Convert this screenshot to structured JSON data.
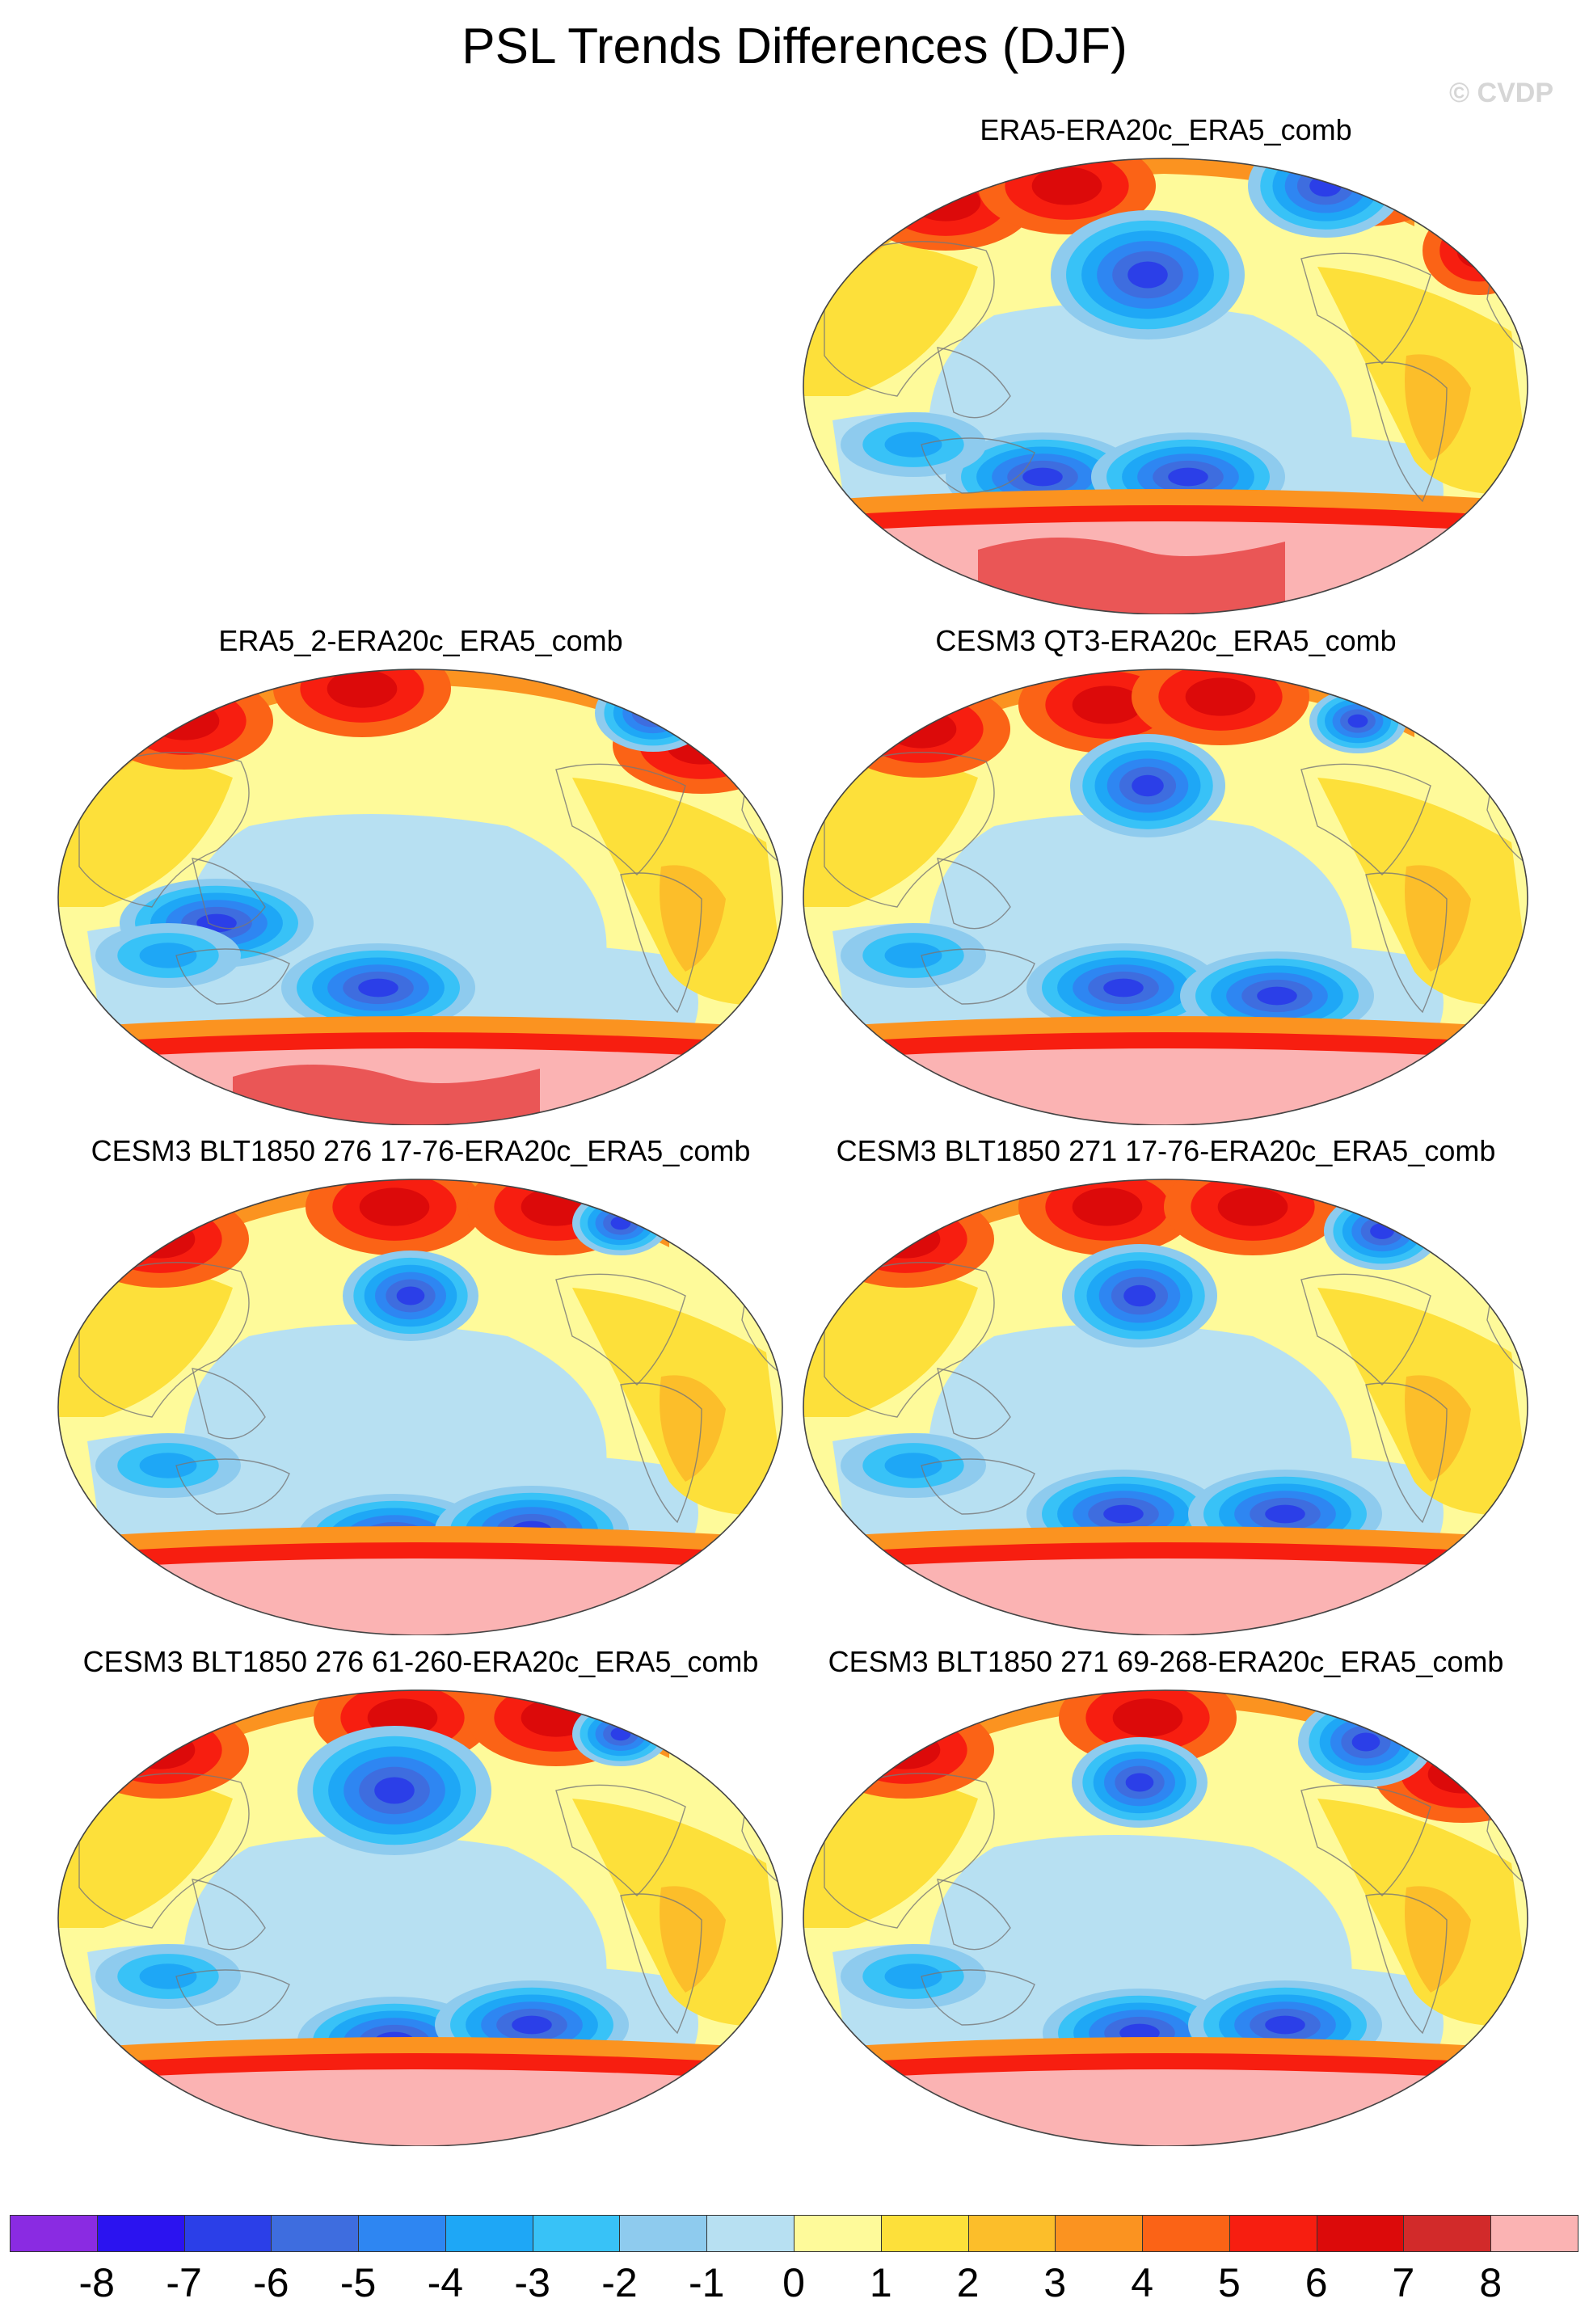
{
  "title": "PSL Trends Differences (DJF)",
  "copyright": "© CVDP",
  "colors": {
    "-8": "#8a2be2",
    "-7": "#2b13f0",
    "-6": "#2b3fe8",
    "-5": "#3e6ddf",
    "-4": "#2e86f2",
    "-3": "#1ea7f6",
    "-2": "#38c2f7",
    "-1": "#8ecbee",
    "0": "#b7e0f2",
    "1": "#fefa9a",
    "2": "#fde03a",
    "3": "#fcbe2a",
    "4": "#fb9320",
    "5": "#fb6316",
    "6": "#f71e10",
    "7": "#dc0a0a",
    "8": "#d22a2a",
    "9": "#fbb3b3"
  },
  "panels": [
    {
      "title": "ERA5-ERA20c_ERA5_comb",
      "variant": 0
    },
    {
      "title": "ERA5_2-ERA20c_ERA5_comb",
      "variant": 1
    },
    {
      "title": "CESM3 QT3-ERA20c_ERA5_comb",
      "variant": 2
    },
    {
      "title": "CESM3 BLT1850 276 17-76-ERA20c_ERA5_comb",
      "variant": 3
    },
    {
      "title": "CESM3 BLT1850 271 17-76-ERA20c_ERA5_comb",
      "variant": 4
    },
    {
      "title": "CESM3 BLT1850 276 61-260-ERA20c_ERA5_comb",
      "variant": 5
    },
    {
      "title": "CESM3 BLT1850 271 69-268-ERA20c_ERA5_comb",
      "variant": 6
    }
  ],
  "colorbar": {
    "labels": [
      "-8",
      "-7",
      "-6",
      "-5",
      "-4",
      "-3",
      "-2",
      "-1",
      "0",
      "1",
      "2",
      "3",
      "4",
      "5",
      "6",
      "7",
      "8"
    ],
    "colors": [
      "#8a2be2",
      "#2b13f0",
      "#2b3fe8",
      "#3e6ddf",
      "#2e86f2",
      "#1ea7f6",
      "#38c2f7",
      "#8ecbee",
      "#b7e0f2",
      "#fefa9a",
      "#fde03a",
      "#fcbe2a",
      "#fb9320",
      "#fb6316",
      "#f71e10",
      "#dc0a0a",
      "#d22a2a",
      "#fbb3b3"
    ]
  }
}
